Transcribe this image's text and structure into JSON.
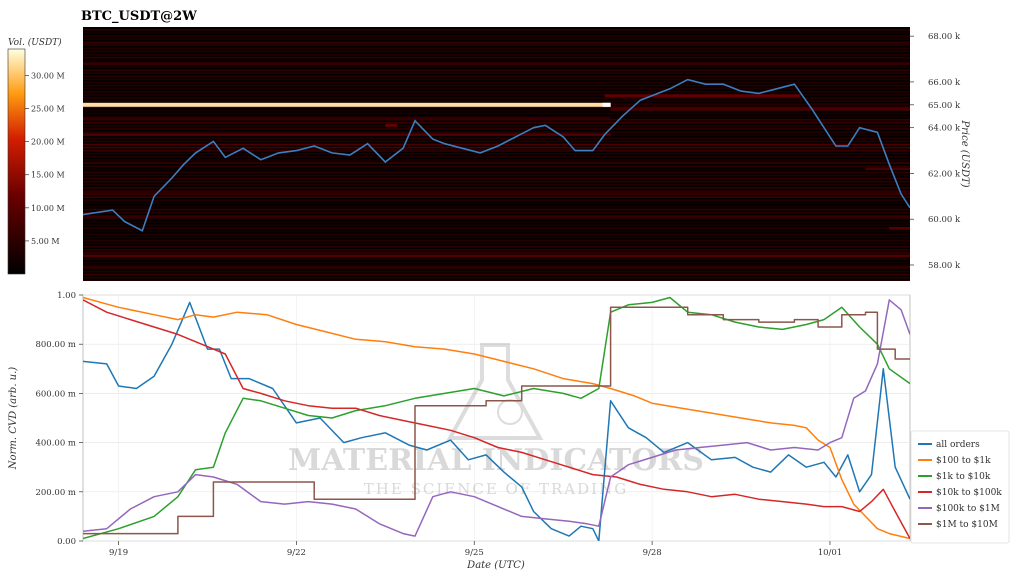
{
  "chart_data": [
    {
      "type": "heatmap",
      "title": "BTC_USDT@2W",
      "colorbar": {
        "label": "Vol. (USDT)",
        "ticks": [
          "5.00 M",
          "10.00 M",
          "15.00 M",
          "20.00 M",
          "25.00 M",
          "30.00 M"
        ],
        "tick_values": [
          5,
          10,
          15,
          20,
          25,
          30
        ],
        "range": [
          0,
          34
        ]
      },
      "ylabel": "Price (USDT)",
      "y_ticks": [
        "58.00 k",
        "60.00 k",
        "62.00 k",
        "64.00 k",
        "65.00 k",
        "66.00 k",
        "68.00 k"
      ],
      "y_tick_values": [
        58000,
        60000,
        62000,
        64000,
        65000,
        66000,
        68000
      ],
      "ylim": [
        57300,
        68400
      ],
      "x_range_days": [
        17.4,
        31.35
      ],
      "price_series": {
        "color": "#3a7fc0",
        "x": [
          17.4,
          17.9,
          18.1,
          18.4,
          18.6,
          18.9,
          19.1,
          19.3,
          19.6,
          19.8,
          20.1,
          20.4,
          20.7,
          21.0,
          21.3,
          21.6,
          21.9,
          22.2,
          22.5,
          22.8,
          23.0,
          23.3,
          23.5,
          23.8,
          24.1,
          24.4,
          24.7,
          25.0,
          25.2,
          25.5,
          25.7,
          26.0,
          26.2,
          26.5,
          26.8,
          27.0,
          27.3,
          27.6,
          27.9,
          28.2,
          28.5,
          28.8,
          29.1,
          29.4,
          29.7,
          29.9,
          30.1,
          30.3,
          30.5,
          30.8,
          31.0,
          31.2,
          31.35
        ],
        "y": [
          60200,
          60400,
          59900,
          59500,
          61000,
          61800,
          62400,
          62900,
          63400,
          62700,
          63100,
          62600,
          62900,
          63000,
          63200,
          62900,
          62800,
          63300,
          62500,
          63100,
          64300,
          63500,
          63300,
          63100,
          62900,
          63200,
          63600,
          64000,
          64100,
          63600,
          63000,
          63000,
          63700,
          64500,
          65200,
          65400,
          65700,
          66100,
          65900,
          65900,
          65600,
          65500,
          65700,
          65900,
          64800,
          64000,
          63200,
          63200,
          64000,
          63800,
          62400,
          61100,
          60500
        ]
      },
      "heat_bands": [
        {
          "price": 65000,
          "volume": 32,
          "x_start": 17.4,
          "x_end": 26.3
        },
        {
          "price": 63700,
          "volume": 9,
          "x_start": 17.4,
          "x_end": 26.3
        },
        {
          "price": 64100,
          "volume": 12,
          "x_start": 22.5,
          "x_end": 22.7
        },
        {
          "price": 65400,
          "volume": 11,
          "x_start": 26.2,
          "x_end": 29.5
        },
        {
          "price": 64800,
          "volume": 8,
          "x_start": 26.3,
          "x_end": 31.35
        },
        {
          "price": 66800,
          "volume": 6,
          "x_start": 17.4,
          "x_end": 31.35
        },
        {
          "price": 67700,
          "volume": 5,
          "x_start": 17.4,
          "x_end": 31.35
        },
        {
          "price": 62200,
          "volume": 8,
          "x_start": 30.6,
          "x_end": 31.35
        },
        {
          "price": 59600,
          "volume": 10,
          "x_start": 31.0,
          "x_end": 31.35
        },
        {
          "price": 58400,
          "volume": 9,
          "x_start": 17.4,
          "x_end": 31.35
        },
        {
          "price": 60100,
          "volume": 6,
          "x_start": 17.4,
          "x_end": 31.35
        },
        {
          "price": 61200,
          "volume": 5,
          "x_start": 17.4,
          "x_end": 31.35
        },
        {
          "price": 63000,
          "volume": 5,
          "x_start": 21.0,
          "x_end": 26.0
        },
        {
          "price": 64400,
          "volume": 6,
          "x_start": 17.4,
          "x_end": 26.3
        },
        {
          "price": 57900,
          "volume": 5,
          "x_start": 17.4,
          "x_end": 31.35
        }
      ]
    },
    {
      "type": "line",
      "xlabel": "Date (UTC)",
      "ylabel": "Norm. CVD (arb. u.)",
      "x_ticks": [
        "9/19",
        "9/22",
        "9/25",
        "9/28",
        "10/01"
      ],
      "x_tick_values": [
        18,
        21,
        24,
        27,
        30
      ],
      "xlim": [
        17.4,
        31.35
      ],
      "y_ticks": [
        "0.00",
        "200.00 m",
        "400.00 m",
        "600.00 m",
        "800.00 m",
        "1.00"
      ],
      "y_tick_values": [
        0,
        0.2,
        0.4,
        0.6,
        0.8,
        1.0
      ],
      "ylim": [
        0,
        1
      ],
      "legend": "bottom-right",
      "watermark": {
        "line1": "MATERIAL INDICATORS",
        "line2": "THE SCIENCE OF TRADING"
      },
      "series": [
        {
          "name": "all orders",
          "color": "#1f77b4",
          "x": [
            17.4,
            17.8,
            18.0,
            18.3,
            18.6,
            18.9,
            19.2,
            19.5,
            19.7,
            19.9,
            20.2,
            20.6,
            21.0,
            21.4,
            21.8,
            22.1,
            22.5,
            22.9,
            23.2,
            23.6,
            23.9,
            24.2,
            24.5,
            24.8,
            25.0,
            25.3,
            25.6,
            25.8,
            26.0,
            26.1,
            26.3,
            26.6,
            26.9,
            27.2,
            27.6,
            28.0,
            28.4,
            28.7,
            29.0,
            29.3,
            29.6,
            29.9,
            30.1,
            30.3,
            30.5,
            30.7,
            30.9,
            31.1,
            31.35
          ],
          "y": [
            0.73,
            0.72,
            0.63,
            0.62,
            0.67,
            0.8,
            0.97,
            0.78,
            0.78,
            0.66,
            0.66,
            0.62,
            0.48,
            0.5,
            0.4,
            0.42,
            0.44,
            0.39,
            0.37,
            0.41,
            0.33,
            0.35,
            0.28,
            0.22,
            0.12,
            0.05,
            0.02,
            0.06,
            0.05,
            0.0,
            0.57,
            0.46,
            0.42,
            0.36,
            0.4,
            0.33,
            0.34,
            0.3,
            0.28,
            0.35,
            0.3,
            0.32,
            0.26,
            0.35,
            0.2,
            0.27,
            0.7,
            0.3,
            0.17
          ]
        },
        {
          "name": "$100 to $1k",
          "color": "#ff7f0e",
          "x": [
            17.4,
            18.0,
            18.6,
            19.0,
            19.3,
            19.6,
            20.0,
            20.5,
            21.0,
            21.5,
            22.0,
            22.5,
            23.0,
            23.5,
            24.0,
            24.5,
            25.0,
            25.5,
            26.0,
            26.3,
            26.7,
            27.0,
            27.5,
            28.0,
            28.5,
            29.0,
            29.4,
            29.6,
            29.8,
            30.0,
            30.2,
            30.4,
            30.6,
            30.8,
            31.0,
            31.35
          ],
          "y": [
            0.99,
            0.95,
            0.92,
            0.9,
            0.92,
            0.91,
            0.93,
            0.92,
            0.88,
            0.85,
            0.82,
            0.81,
            0.79,
            0.78,
            0.76,
            0.73,
            0.7,
            0.66,
            0.64,
            0.62,
            0.59,
            0.56,
            0.54,
            0.52,
            0.5,
            0.48,
            0.47,
            0.46,
            0.41,
            0.38,
            0.25,
            0.15,
            0.1,
            0.05,
            0.03,
            0.01
          ]
        },
        {
          "name": "$1k to $10k",
          "color": "#2ca02c",
          "x": [
            17.4,
            18.0,
            18.6,
            19.0,
            19.3,
            19.6,
            19.8,
            20.1,
            20.4,
            20.8,
            21.2,
            21.6,
            22.0,
            22.5,
            23.0,
            23.5,
            24.0,
            24.5,
            25.0,
            25.5,
            25.8,
            26.1,
            26.3,
            26.6,
            27.0,
            27.3,
            27.6,
            28.0,
            28.4,
            28.8,
            29.2,
            29.6,
            29.9,
            30.2,
            30.5,
            30.8,
            31.0,
            31.35
          ],
          "y": [
            0.01,
            0.05,
            0.1,
            0.18,
            0.29,
            0.3,
            0.44,
            0.58,
            0.57,
            0.54,
            0.51,
            0.5,
            0.53,
            0.55,
            0.58,
            0.6,
            0.62,
            0.59,
            0.62,
            0.6,
            0.58,
            0.62,
            0.93,
            0.96,
            0.97,
            0.99,
            0.93,
            0.92,
            0.89,
            0.87,
            0.86,
            0.88,
            0.9,
            0.95,
            0.87,
            0.8,
            0.7,
            0.64
          ]
        },
        {
          "name": "$10k to $100k",
          "color": "#d62728",
          "x": [
            17.4,
            17.8,
            18.2,
            18.6,
            19.0,
            19.4,
            19.8,
            20.1,
            20.4,
            20.8,
            21.2,
            21.6,
            22.0,
            22.4,
            22.8,
            23.2,
            23.6,
            24.0,
            24.4,
            24.8,
            25.2,
            25.6,
            26.0,
            26.4,
            26.8,
            27.2,
            27.6,
            28.0,
            28.4,
            28.8,
            29.2,
            29.6,
            29.9,
            30.2,
            30.5,
            30.7,
            30.9,
            31.1,
            31.35
          ],
          "y": [
            0.98,
            0.93,
            0.9,
            0.87,
            0.84,
            0.8,
            0.76,
            0.62,
            0.6,
            0.57,
            0.55,
            0.54,
            0.54,
            0.51,
            0.49,
            0.47,
            0.45,
            0.42,
            0.38,
            0.36,
            0.33,
            0.3,
            0.27,
            0.26,
            0.23,
            0.21,
            0.2,
            0.18,
            0.19,
            0.17,
            0.16,
            0.15,
            0.14,
            0.14,
            0.12,
            0.16,
            0.21,
            0.12,
            0.01
          ]
        },
        {
          "name": "$100k to $1M",
          "color": "#9467bd",
          "x": [
            17.4,
            17.8,
            18.2,
            18.6,
            19.0,
            19.3,
            19.6,
            20.0,
            20.4,
            20.8,
            21.2,
            21.6,
            22.0,
            22.4,
            22.8,
            23.0,
            23.3,
            23.6,
            24.0,
            24.4,
            24.8,
            25.2,
            25.6,
            25.9,
            26.1,
            26.3,
            26.6,
            27.0,
            27.4,
            27.8,
            28.2,
            28.6,
            29.0,
            29.4,
            29.8,
            30.0,
            30.2,
            30.4,
            30.6,
            30.8,
            31.0,
            31.2,
            31.35
          ],
          "y": [
            0.04,
            0.05,
            0.13,
            0.18,
            0.2,
            0.27,
            0.26,
            0.23,
            0.16,
            0.15,
            0.16,
            0.15,
            0.13,
            0.07,
            0.03,
            0.02,
            0.18,
            0.2,
            0.18,
            0.14,
            0.1,
            0.09,
            0.08,
            0.07,
            0.06,
            0.26,
            0.31,
            0.34,
            0.37,
            0.38,
            0.39,
            0.4,
            0.37,
            0.38,
            0.37,
            0.4,
            0.42,
            0.58,
            0.61,
            0.72,
            0.98,
            0.94,
            0.84
          ]
        },
        {
          "name": "$1M to $10M",
          "color": "#8c564b",
          "step": true,
          "x": [
            17.4,
            18.2,
            18.8,
            19.0,
            19.6,
            20.0,
            20.6,
            21.3,
            21.6,
            22.2,
            23.0,
            23.8,
            24.2,
            24.8,
            25.6,
            26.0,
            26.3,
            27.0,
            27.6,
            28.2,
            28.8,
            29.4,
            29.8,
            30.2,
            30.6,
            30.8,
            31.1,
            31.35
          ],
          "y": [
            0.03,
            0.03,
            0.03,
            0.1,
            0.24,
            0.24,
            0.24,
            0.17,
            0.17,
            0.17,
            0.55,
            0.55,
            0.57,
            0.63,
            0.63,
            0.63,
            0.95,
            0.95,
            0.92,
            0.9,
            0.89,
            0.9,
            0.87,
            0.92,
            0.93,
            0.78,
            0.74,
            0.74
          ]
        }
      ]
    }
  ]
}
